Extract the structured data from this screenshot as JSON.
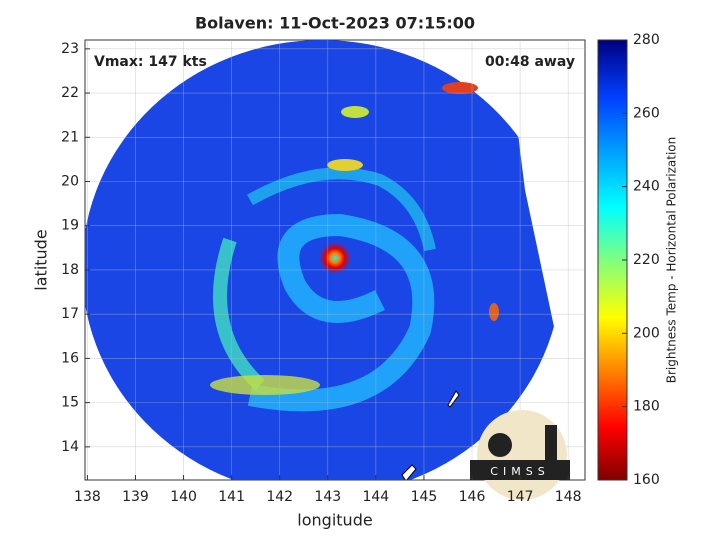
{
  "chart_data": {
    "type": "map",
    "title": "Bolaven: 11-Oct-2023 07:15:00",
    "annotations": [
      "Vmax: 147 kts",
      "00:48 away"
    ],
    "x_label": "longitude",
    "y_label": "latitude",
    "xlim": [
      137.95,
      148.35
    ],
    "xticks": [
      138,
      139,
      140,
      141,
      142,
      143,
      144,
      145,
      146,
      147,
      148
    ],
    "ylim": [
      13.25,
      23.2
    ],
    "yticks": [
      14,
      15,
      16,
      17,
      18,
      19,
      20,
      21,
      22,
      23
    ],
    "grid": true,
    "colorbar": {
      "label": "Brightness Temp - Horizontal Polarization",
      "lim": [
        160,
        280
      ],
      "ticks": [
        160,
        180,
        200,
        220,
        240,
        260,
        280
      ]
    },
    "logo": "CIMSS"
  }
}
